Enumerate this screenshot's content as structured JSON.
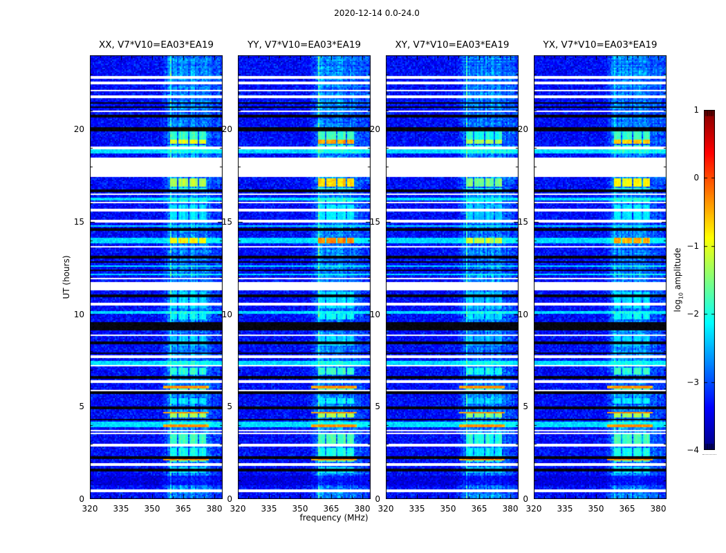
{
  "figure_title": "2020-12-14 0.0-24.0",
  "colors": {
    "background": "#ffffff",
    "frame": "#000000"
  },
  "chart_data": {
    "type": "heatmap",
    "title": "2020-12-14 0.0-24.0",
    "xlabel": "frequency (MHz)",
    "ylabel": "UT (hours)",
    "colorbar_label": {
      "prefix": "log",
      "sub": "10",
      "suffix": " amplitude"
    },
    "x_ticks": [
      320,
      335,
      350,
      365,
      380
    ],
    "x_minor_tick_step_mhz": 5,
    "y_ticks": [
      0,
      5,
      10,
      15,
      20
    ],
    "y_minor_tick_step_hours": 1,
    "colorbar_ticks": [
      1,
      0,
      -1,
      -2,
      -3,
      -4
    ],
    "value_range": [
      -4,
      1
    ],
    "colormap": "jet",
    "x_range_mhz": [
      320,
      384
    ],
    "y_range_hours": [
      0,
      24
    ],
    "background_level": -3.35,
    "noise_sigma": 0.27,
    "rfi": {
      "haze_start_mhz": 354,
      "haze_level": 0.5,
      "persistent_line_mhz": 358.8,
      "block_bands_mhz": [
        [
          358.5,
          362.2
        ],
        [
          362.9,
          367.4
        ],
        [
          368.0,
          371.8
        ],
        [
          372.5,
          376.3
        ]
      ]
    },
    "panels": [
      {
        "pol": "XX",
        "label": "XX, V7*V10=EA03*EA19",
        "seed": 11,
        "patch_boost": 0,
        "hot_boost": 0
      },
      {
        "pol": "YY",
        "label": "YY, V7*V10=EA03*EA19",
        "seed": 22,
        "patch_boost": 0.05,
        "hot_boost": 0.55
      },
      {
        "pol": "XY",
        "label": "XY, V7*V10=EA03*EA19",
        "seed": 33,
        "patch_boost": -0.15,
        "hot_boost": -0.3
      },
      {
        "pol": "YX",
        "label": "YX, V7*V10=EA03*EA19",
        "seed": 44,
        "patch_boost": 0,
        "hot_boost": 0.35
      }
    ],
    "stripes": [
      {
        "ut": 22.82,
        "h": 0.16,
        "type": "white"
      },
      {
        "ut": 22.5,
        "h": 0.12,
        "type": "white"
      },
      {
        "ut": 22.1,
        "h": 0.07,
        "type": "white"
      },
      {
        "ut": 21.75,
        "h": 0.16,
        "type": "white"
      },
      {
        "ut": 21.42,
        "h": 0.12,
        "type": "black"
      },
      {
        "ut": 21.18,
        "h": 0.1,
        "type": "black"
      },
      {
        "ut": 21.0,
        "h": 0.06,
        "type": "white"
      },
      {
        "ut": 20.7,
        "h": 0.1,
        "type": "black"
      },
      {
        "ut": 20.0,
        "h": 0.16,
        "type": "black"
      },
      {
        "ut": 19.0,
        "h": 0.1,
        "type": "white"
      },
      {
        "ut": 18.8,
        "h": 0.2,
        "type": "cyan"
      },
      {
        "ut": 18.62,
        "h": 0.06,
        "type": "white"
      },
      {
        "ut": 17.95,
        "h": 1.1,
        "type": "white"
      },
      {
        "ut": 16.68,
        "h": 0.18,
        "type": "black"
      },
      {
        "ut": 16.5,
        "h": 0.1,
        "type": "white"
      },
      {
        "ut": 16.22,
        "h": 0.2,
        "type": "cyan"
      },
      {
        "ut": 16.07,
        "h": 0.08,
        "type": "white"
      },
      {
        "ut": 15.62,
        "h": 0.14,
        "type": "white"
      },
      {
        "ut": 15.05,
        "h": 0.12,
        "type": "white"
      },
      {
        "ut": 14.8,
        "h": 0.08,
        "type": "cyan"
      },
      {
        "ut": 14.6,
        "h": 0.12,
        "type": "black"
      },
      {
        "ut": 13.97,
        "h": 0.33,
        "type": "cyan"
      },
      {
        "ut": 13.65,
        "h": 0.12,
        "type": "white"
      },
      {
        "ut": 13.38,
        "h": 0.05,
        "type": "white"
      },
      {
        "ut": 13.1,
        "h": 0.15,
        "type": "black"
      },
      {
        "ut": 12.82,
        "h": 0.08,
        "type": "black"
      },
      {
        "ut": 12.6,
        "h": 0.08,
        "type": "cyan"
      },
      {
        "ut": 12.35,
        "h": 0.08,
        "type": "black"
      },
      {
        "ut": 12.15,
        "h": 0.08,
        "type": "cyan"
      },
      {
        "ut": 11.92,
        "h": 0.1,
        "type": "white"
      },
      {
        "ut": 11.55,
        "h": 0.45,
        "type": "white"
      },
      {
        "ut": 11.0,
        "h": 0.1,
        "type": "black"
      },
      {
        "ut": 10.55,
        "h": 0.12,
        "type": "white"
      },
      {
        "ut": 10.1,
        "h": 0.15,
        "type": "cyan"
      },
      {
        "ut": 9.35,
        "h": 0.45,
        "type": "black"
      },
      {
        "ut": 8.85,
        "h": 0.06,
        "type": "white"
      },
      {
        "ut": 8.45,
        "h": 0.1,
        "type": "black"
      },
      {
        "ut": 7.88,
        "h": 0.1,
        "type": "black"
      },
      {
        "ut": 7.7,
        "h": 0.12,
        "type": "white"
      },
      {
        "ut": 7.35,
        "h": 0.18,
        "type": "cyan"
      },
      {
        "ut": 7.2,
        "h": 0.1,
        "type": "white"
      },
      {
        "ut": 6.6,
        "h": 0.15,
        "type": "black"
      },
      {
        "ut": 6.35,
        "h": 0.15,
        "type": "white"
      },
      {
        "ut": 5.88,
        "h": 0.06,
        "type": "white"
      },
      {
        "ut": 5.75,
        "h": 0.1,
        "type": "black"
      },
      {
        "ut": 4.95,
        "h": 0.15,
        "type": "black"
      },
      {
        "ut": 4.3,
        "h": 0.1,
        "type": "black"
      },
      {
        "ut": 4.05,
        "h": 0.25,
        "type": "cyan"
      },
      {
        "ut": 3.68,
        "h": 0.08,
        "type": "white"
      },
      {
        "ut": 3.55,
        "h": 0.08,
        "type": "white"
      },
      {
        "ut": 2.9,
        "h": 0.12,
        "type": "white"
      },
      {
        "ut": 2.25,
        "h": 0.12,
        "type": "black"
      },
      {
        "ut": 1.85,
        "h": 0.18,
        "type": "white"
      },
      {
        "ut": 1.55,
        "h": 0.15,
        "type": "black"
      },
      {
        "ut": 1.0,
        "h": 0.55,
        "type": "dim"
      },
      {
        "ut": 0.45,
        "h": 0.08,
        "type": "white"
      }
    ],
    "patches": [
      {
        "ut": 19.7,
        "h": 0.45,
        "level": -1.85
      },
      {
        "ut": 19.32,
        "h": 0.22,
        "level": -1.0,
        "hot": true
      },
      {
        "ut": 19.02,
        "h": 0.22,
        "level": -1.9
      },
      {
        "ut": 17.1,
        "h": 0.42,
        "level": -1.25,
        "hot": true
      },
      {
        "ut": 16.72,
        "h": 0.2,
        "level": -1.9
      },
      {
        "ut": 16.22,
        "h": 0.22,
        "level": -2.0
      },
      {
        "ut": 15.5,
        "h": 0.78,
        "level": -2.25
      },
      {
        "ut": 13.97,
        "h": 0.28,
        "level": -0.85,
        "hot": true
      },
      {
        "ut": 10.75,
        "h": 0.88,
        "level": -2.3
      },
      {
        "ut": 9.9,
        "h": 0.3,
        "level": -2.15
      },
      {
        "ut": 8.55,
        "h": 0.5,
        "level": -2.35
      },
      {
        "ut": 6.9,
        "h": 0.4,
        "level": -1.9
      },
      {
        "ut": 6.0,
        "h": 0.22,
        "level": -1.75,
        "orange_top": true
      },
      {
        "ut": 5.3,
        "h": 0.35,
        "level": -2.2
      },
      {
        "ut": 4.55,
        "h": 0.3,
        "level": -1.35,
        "orange_top": true
      },
      {
        "ut": 3.95,
        "h": 0.14,
        "level": -1.6,
        "orange_top": true
      },
      {
        "ut": 3.25,
        "h": 0.5,
        "level": -1.8
      },
      {
        "ut": 2.55,
        "h": 0.4,
        "level": -2.05
      },
      {
        "ut": 2.1,
        "h": 0.14,
        "level": -1.7,
        "orange_top": true
      },
      {
        "ut": 1.6,
        "h": 0.3,
        "level": -2.2
      }
    ]
  }
}
